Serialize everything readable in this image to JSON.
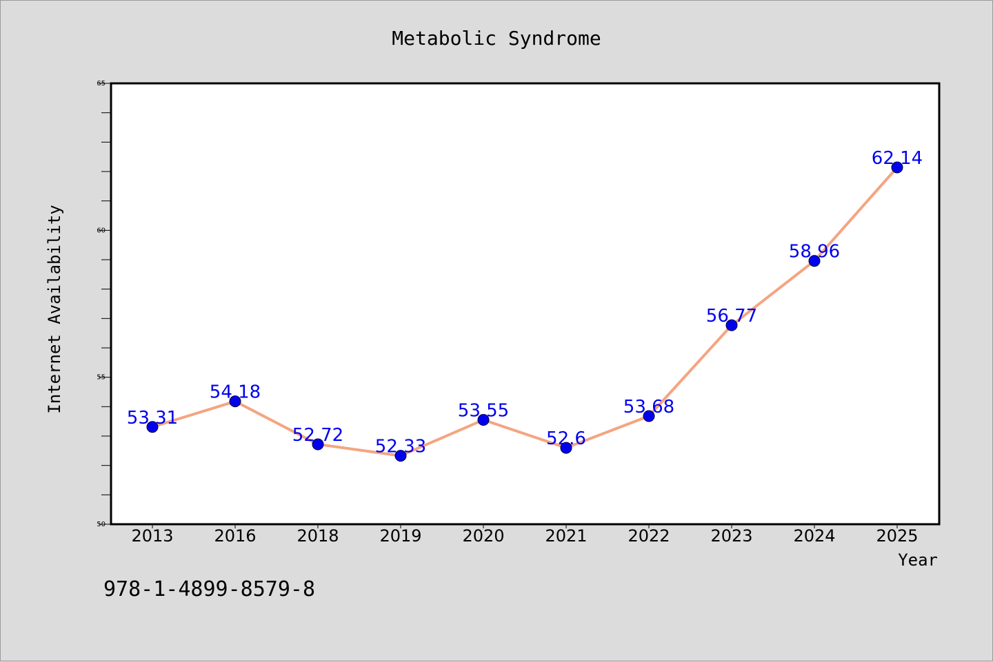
{
  "chart_data": {
    "type": "line",
    "title": "Metabolic Syndrome",
    "xlabel": "Year",
    "ylabel": "Internet Availability",
    "categories": [
      "2013",
      "2016",
      "2018",
      "2019",
      "2020",
      "2021",
      "2022",
      "2023",
      "2024",
      "2025"
    ],
    "series": [
      {
        "values": [
          53.31,
          54.18,
          52.72,
          52.33,
          53.55,
          52.6,
          53.68,
          56.77,
          58.96,
          62.14
        ],
        "line_color": "#f4a582",
        "marker_color": "#0000ee"
      }
    ],
    "data_labels": [
      "53.31",
      "54.18",
      "52.72",
      "52.33",
      "53.55",
      "52.6",
      "53.68",
      "56.77",
      "58.96",
      "62.14"
    ],
    "ylim": [
      50,
      65
    ],
    "yticks": [
      50,
      55,
      60,
      65
    ],
    "ytick_labels": [
      "50",
      "55",
      "60",
      "65"
    ],
    "grid": false,
    "legend": "none",
    "label_color": "#0000ee",
    "footer_text": "978-1-4899-8579-8"
  }
}
